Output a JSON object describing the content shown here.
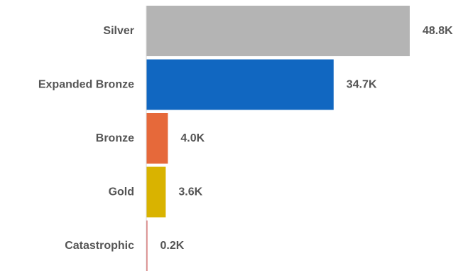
{
  "chart_data": {
    "type": "bar",
    "orientation": "horizontal",
    "title": "",
    "xlabel": "",
    "ylabel": "",
    "categories": [
      "Silver",
      "Expanded Bronze",
      "Bronze",
      "Gold",
      "Catastrophic"
    ],
    "values": [
      48800,
      34700,
      4000,
      3600,
      200
    ],
    "value_labels": [
      "48.8K",
      "34.7K",
      "4.0K",
      "3.6K",
      "0.2K"
    ],
    "colors": [
      "#b4b4b4",
      "#1167c1",
      "#e6693a",
      "#d9b300",
      "#d44a4a"
    ],
    "xlim": [
      0,
      48800
    ],
    "grid": false,
    "legend": "none"
  }
}
